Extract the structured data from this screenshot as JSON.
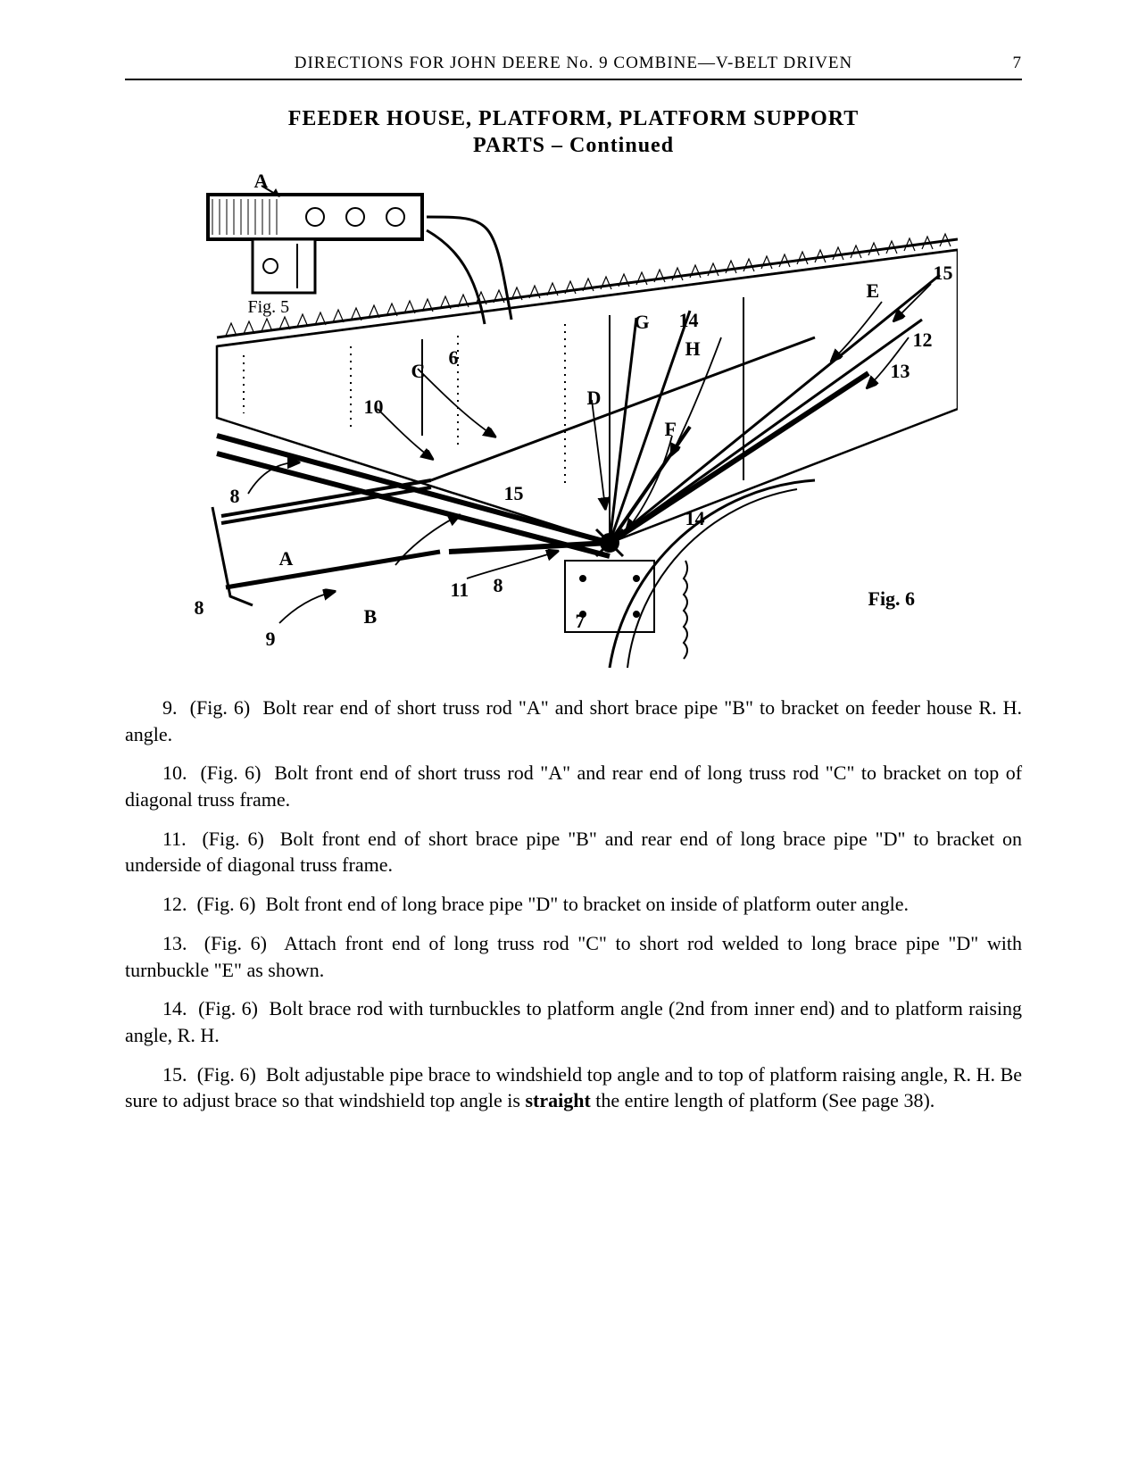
{
  "header": {
    "running_title": "DIRECTIONS FOR JOHN DEERE No. 9 COMBINE—V-BELT DRIVEN",
    "page_number": "7"
  },
  "section": {
    "title_line1": "FEEDER HOUSE, PLATFORM, PLATFORM SUPPORT",
    "title_line2": "PARTS – Continued"
  },
  "figure": {
    "fig5_label": "Fig. 5",
    "fig6_label": "Fig. 6",
    "callouts": {
      "A_top": "A",
      "A_mid": "A",
      "B": "B",
      "C": "C",
      "D": "D",
      "E": "E",
      "F": "F",
      "G": "G",
      "H": "H",
      "n6": "6",
      "n7": "7",
      "n8a": "8",
      "n8b": "8",
      "n8c": "8",
      "n9": "9",
      "n10": "10",
      "n11": "11",
      "n12": "12",
      "n13": "13",
      "n14a": "14",
      "n14b": "14",
      "n15a": "15",
      "n15b": "15"
    },
    "style": {
      "line_color": "#000000",
      "line_width_main": 2.5,
      "line_width_thin": 1.2,
      "hatch_spacing": 4,
      "label_fontsize": 22,
      "label_fontweight": "bold",
      "bg": "#ffffff"
    }
  },
  "instructions": [
    {
      "num": "9.",
      "ref": "(Fig. 6)",
      "text": "Bolt rear end of short truss rod \"A\" and short brace pipe \"B\" to bracket on feeder house R. H. angle."
    },
    {
      "num": "10.",
      "ref": "(Fig. 6)",
      "text": "Bolt front end of short truss rod \"A\" and rear end of long truss rod \"C\" to bracket on top of diagonal truss frame."
    },
    {
      "num": "11.",
      "ref": "(Fig. 6)",
      "text": "Bolt front end of short brace pipe \"B\" and rear end of long brace pipe \"D\" to bracket on underside of diagonal truss frame."
    },
    {
      "num": "12.",
      "ref": "(Fig. 6)",
      "text": "Bolt front end of long brace pipe \"D\" to bracket on inside of platform outer angle."
    },
    {
      "num": "13.",
      "ref": "(Fig. 6)",
      "text": "Attach front end of long truss rod \"C\" to short rod welded to long brace pipe \"D\" with turnbuckle \"E\" as shown."
    },
    {
      "num": "14.",
      "ref": "(Fig. 6)",
      "text": "Bolt brace rod with turnbuckles to platform angle (2nd from inner end) and to platform raising angle, R. H."
    },
    {
      "num": "15.",
      "ref": "(Fig. 6)",
      "text": "Bolt adjustable pipe brace to windshield top angle and to top of platform raising angle, R. H. Be sure to adjust brace so that windshield top angle is <b>straight</b> the entire length of platform (See page 38)."
    }
  ],
  "typography": {
    "body_fontsize": 22,
    "title_fontsize": 24,
    "header_fontsize": 19,
    "font_family": "Times New Roman"
  },
  "colors": {
    "text": "#000000",
    "background": "#ffffff",
    "rule": "#000000"
  }
}
